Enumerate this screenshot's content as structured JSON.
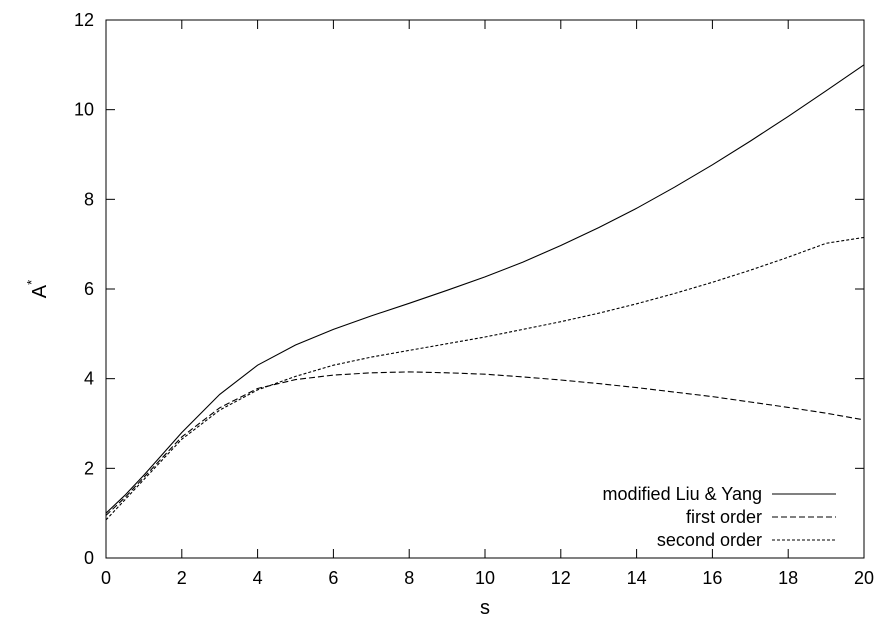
{
  "chart_data": {
    "type": "line",
    "title": "",
    "xlabel": "s",
    "ylabel": "A*",
    "ylabel_base": "A",
    "ylabel_sup": "*",
    "xlim": [
      0,
      20
    ],
    "ylim": [
      0,
      12
    ],
    "xticks": [
      "0",
      "2",
      "4",
      "6",
      "8",
      "10",
      "12",
      "14",
      "16",
      "18",
      "20"
    ],
    "yticks": [
      "0",
      "2",
      "4",
      "6",
      "8",
      "10",
      "12"
    ],
    "grid": false,
    "legend_position": "bottom-right",
    "series": [
      {
        "name": "modified Liu & Yang",
        "line_style": "solid",
        "x": [
          0,
          0.5,
          1,
          2,
          3,
          4,
          5,
          6,
          7,
          8,
          9,
          10,
          11,
          12,
          13,
          14,
          15,
          16,
          17,
          18,
          19,
          20
        ],
        "y": [
          1.0,
          1.4,
          1.85,
          2.8,
          3.65,
          4.3,
          4.75,
          5.1,
          5.4,
          5.68,
          5.97,
          6.27,
          6.6,
          6.97,
          7.37,
          7.8,
          8.27,
          8.77,
          9.3,
          9.85,
          10.42,
          11.0
        ]
      },
      {
        "name": "first order",
        "line_style": "dashed",
        "x": [
          0,
          0.5,
          1,
          2,
          3,
          4,
          5,
          6,
          7,
          8,
          9,
          10,
          11,
          12,
          13,
          14,
          15,
          16,
          17,
          18,
          19,
          20
        ],
        "y": [
          0.95,
          1.35,
          1.8,
          2.7,
          3.35,
          3.78,
          3.98,
          4.08,
          4.13,
          4.15,
          4.13,
          4.1,
          4.04,
          3.97,
          3.89,
          3.8,
          3.7,
          3.6,
          3.48,
          3.36,
          3.23,
          3.08
        ]
      },
      {
        "name": "second order",
        "line_style": "dotted",
        "x": [
          0,
          0.5,
          1,
          2,
          3,
          4,
          5,
          6,
          7,
          8,
          9,
          10,
          11,
          12,
          13,
          14,
          15,
          16,
          17,
          18,
          19,
          20
        ],
        "y": [
          0.85,
          1.3,
          1.75,
          2.65,
          3.3,
          3.75,
          4.05,
          4.3,
          4.48,
          4.63,
          4.78,
          4.93,
          5.1,
          5.27,
          5.46,
          5.67,
          5.9,
          6.15,
          6.42,
          6.71,
          7.02,
          7.15
        ]
      }
    ]
  }
}
